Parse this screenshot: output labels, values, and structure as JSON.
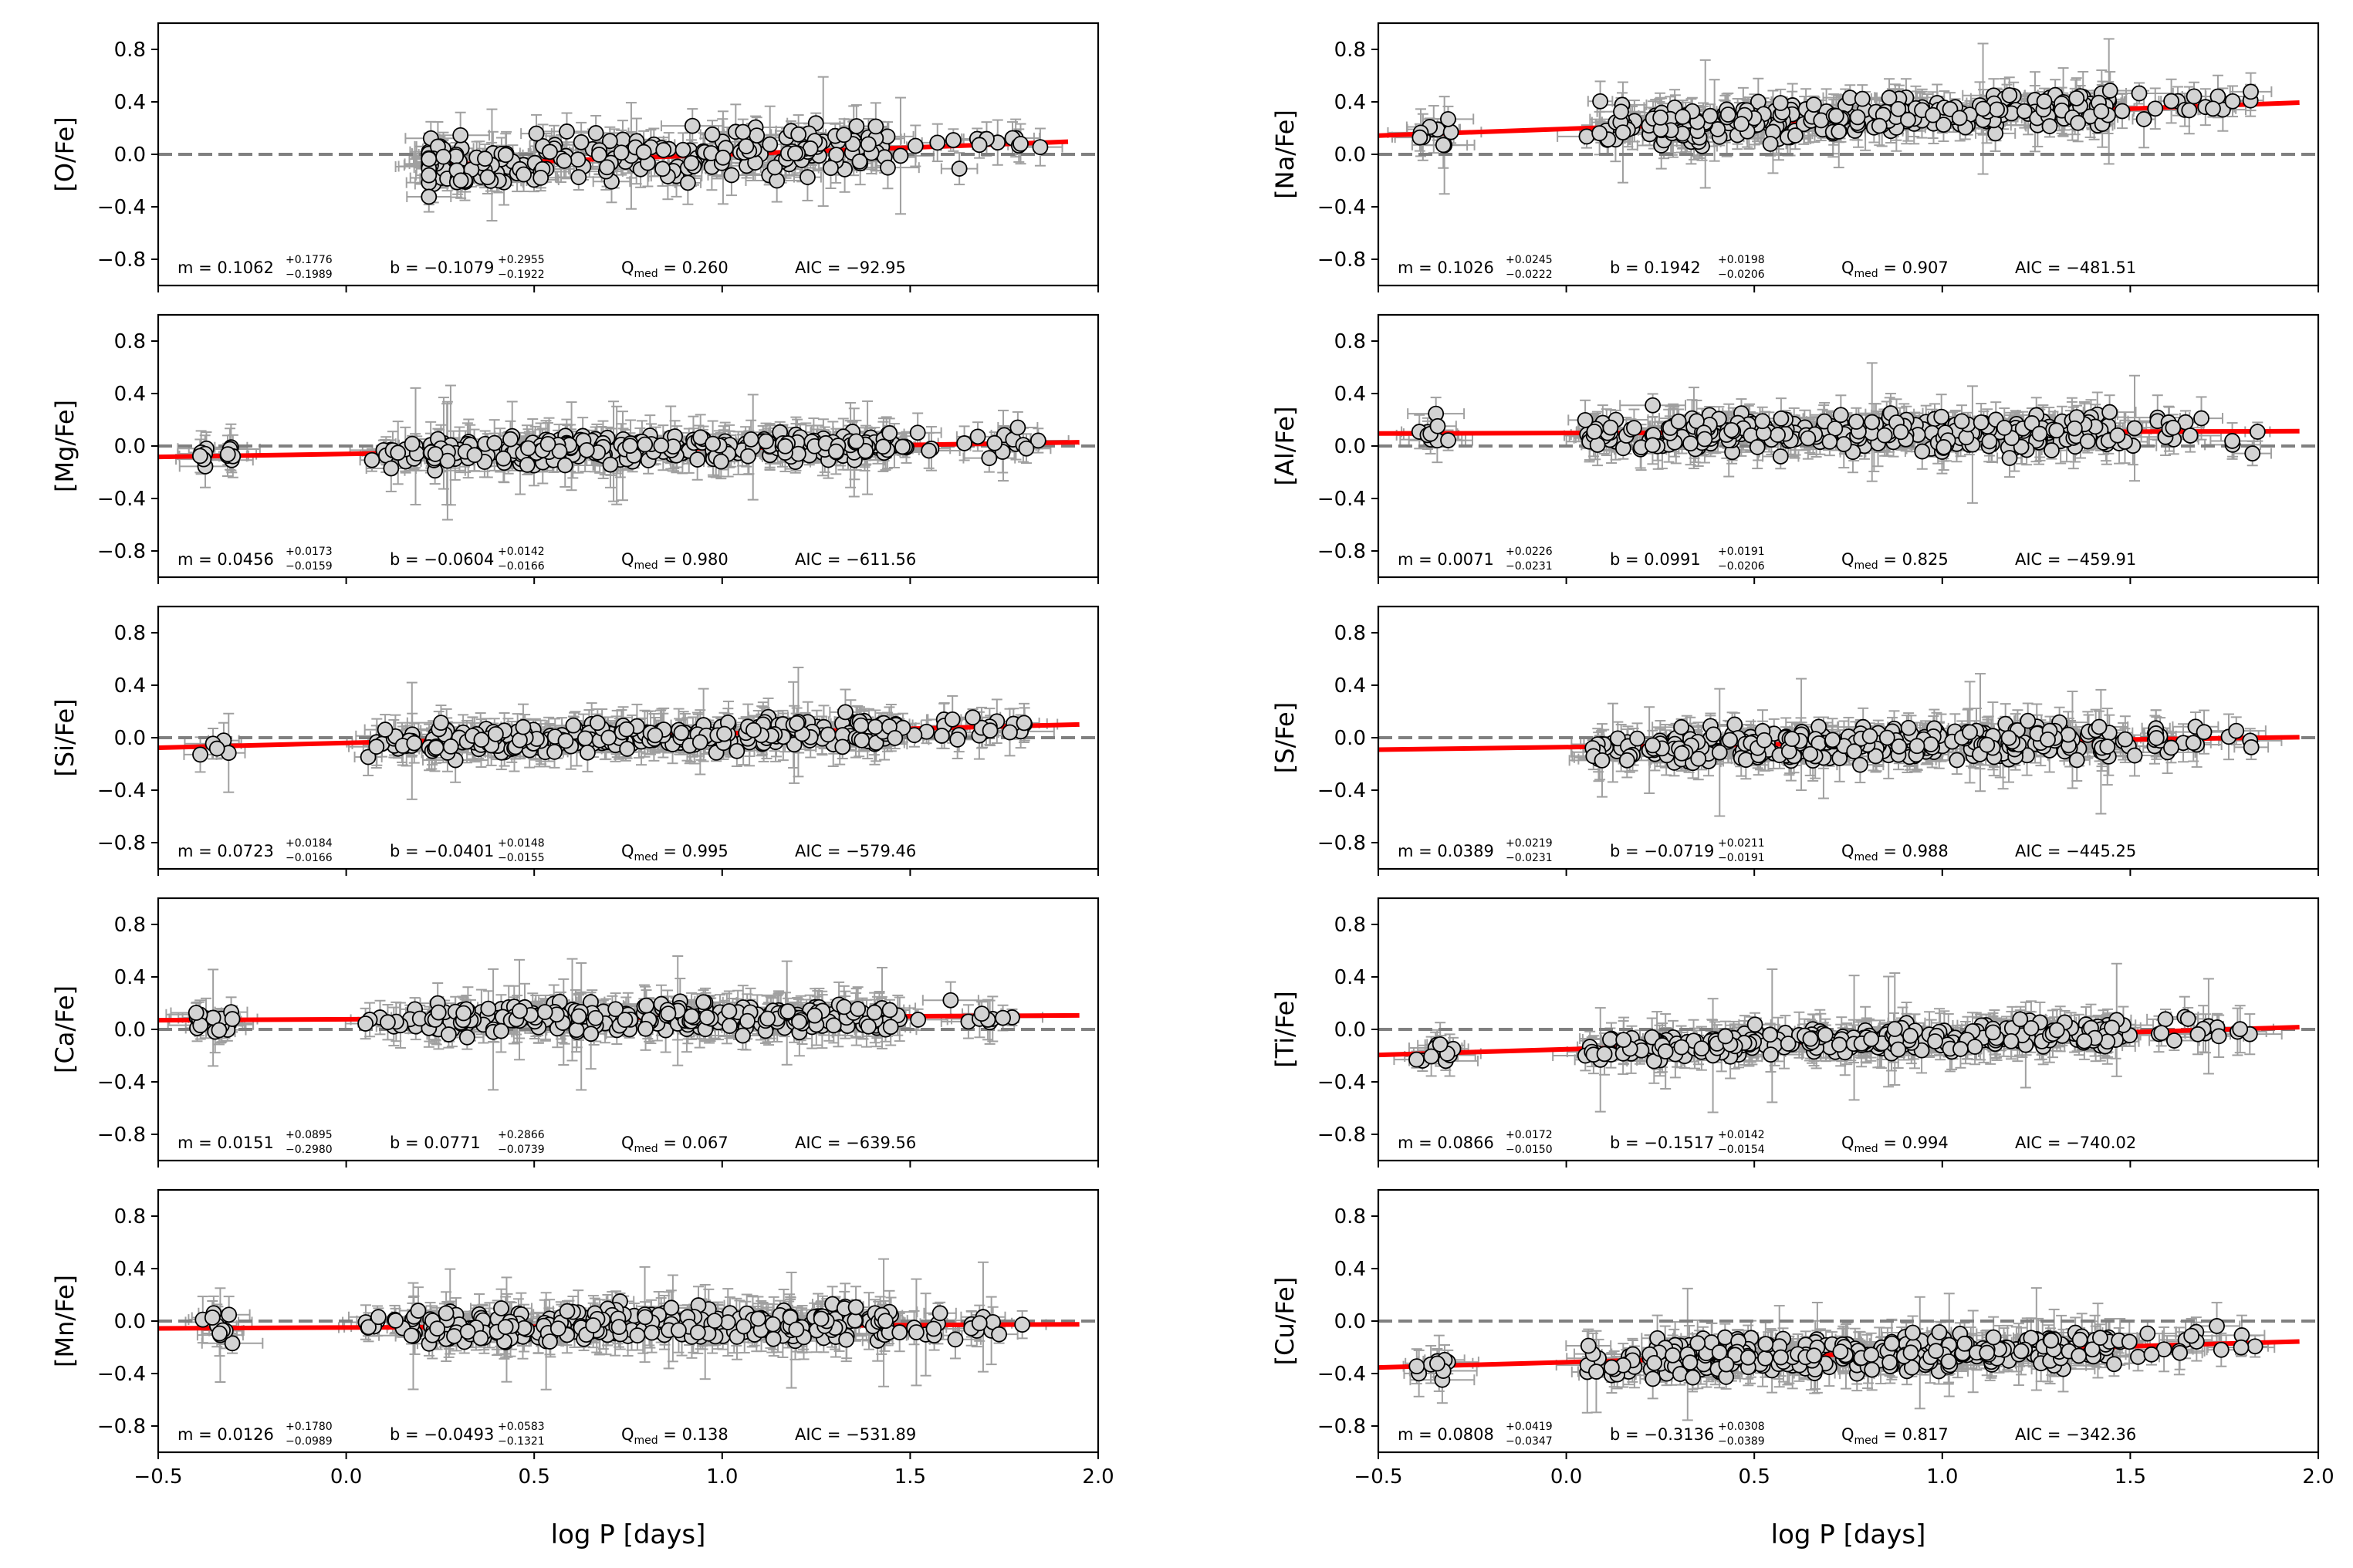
{
  "figure": {
    "xlabel_left": "log P [days]",
    "xlabel_right": "log P [days]"
  },
  "colors": {
    "fit": "#ff0000",
    "reference": "#808080",
    "marker_fill": "#d3d3d3",
    "marker_edge": "#000000",
    "errorbar": "#a0a0a0"
  },
  "chart_data": [
    {
      "type": "scatter",
      "ylabel": "[O/Fe]",
      "xlim": [
        -0.5,
        2.0
      ],
      "ylim": [
        -1.0,
        1.0
      ],
      "xticks": [
        "−0.5",
        "0.0",
        "0.5",
        "1.0",
        "1.5",
        "2.0"
      ],
      "yticks": [
        "0.8",
        "0.4",
        "0.0",
        "−0.4",
        "−0.8"
      ],
      "fit": {
        "slope": 0.1062,
        "intercept": -0.1079,
        "x_range": [
          0.22,
          1.92
        ]
      },
      "x_extent": [
        0.22,
        1.85
      ],
      "y_center": 0.0,
      "y_spread": 0.16,
      "annotation": {
        "m": "0.1062",
        "m_up": "+0.1776",
        "m_dn": "−0.1989",
        "b": "−0.1079",
        "b_up": "+0.2955",
        "b_dn": "−0.1922",
        "q": "0.260",
        "aic": "−92.95"
      }
    },
    {
      "type": "scatter",
      "ylabel": "[Na/Fe]",
      "xlim": [
        -0.5,
        2.0
      ],
      "ylim": [
        -1.0,
        1.0
      ],
      "xticks": [
        "−0.5",
        "0.0",
        "0.5",
        "1.0",
        "1.5",
        "2.0"
      ],
      "yticks": [
        "0.8",
        "0.4",
        "0.0",
        "−0.4",
        "−0.8"
      ],
      "fit": {
        "slope": 0.1026,
        "intercept": 0.1942,
        "x_range": [
          -0.5,
          1.95
        ]
      },
      "x_extent": [
        -0.4,
        1.85
      ],
      "y_center": 0.3,
      "y_spread": 0.12,
      "annotation": {
        "m": "0.1026",
        "m_up": "+0.0245",
        "m_dn": "−0.0222",
        "b": "0.1942",
        "b_up": "+0.0198",
        "b_dn": "−0.0206",
        "q": "0.907",
        "aic": "−481.51"
      }
    },
    {
      "type": "scatter",
      "ylabel": "[Mg/Fe]",
      "xlim": [
        -0.5,
        2.0
      ],
      "ylim": [
        -1.0,
        1.0
      ],
      "xticks": [
        "−0.5",
        "0.0",
        "0.5",
        "1.0",
        "1.5",
        "2.0"
      ],
      "yticks": [
        "0.8",
        "0.4",
        "0.0",
        "−0.4",
        "−0.8"
      ],
      "fit": {
        "slope": 0.0456,
        "intercept": -0.0604,
        "x_range": [
          -0.5,
          1.95
        ]
      },
      "x_extent": [
        -0.4,
        1.85
      ],
      "y_center": -0.02,
      "y_spread": 0.09,
      "annotation": {
        "m": "0.0456",
        "m_up": "+0.0173",
        "m_dn": "−0.0159",
        "b": "−0.0604",
        "b_up": "+0.0142",
        "b_dn": "−0.0166",
        "q": "0.980",
        "aic": "−611.56"
      }
    },
    {
      "type": "scatter",
      "ylabel": "[Al/Fe]",
      "xlim": [
        -0.5,
        2.0
      ],
      "ylim": [
        -1.0,
        1.0
      ],
      "xticks": [
        "−0.5",
        "0.0",
        "0.5",
        "1.0",
        "1.5",
        "2.0"
      ],
      "yticks": [
        "0.8",
        "0.4",
        "0.0",
        "−0.4",
        "−0.8"
      ],
      "fit": {
        "slope": 0.0071,
        "intercept": 0.0991,
        "x_range": [
          -0.5,
          1.95
        ]
      },
      "x_extent": [
        -0.4,
        1.85
      ],
      "y_center": 0.1,
      "y_spread": 0.12,
      "annotation": {
        "m": "0.0071",
        "m_up": "+0.0226",
        "m_dn": "−0.0231",
        "b": "0.0991",
        "b_up": "+0.0191",
        "b_dn": "−0.0206",
        "q": "0.825",
        "aic": "−459.91"
      }
    },
    {
      "type": "scatter",
      "ylabel": "[Si/Fe]",
      "xlim": [
        -0.5,
        2.0
      ],
      "ylim": [
        -1.0,
        1.0
      ],
      "xticks": [
        "−0.5",
        "0.0",
        "0.5",
        "1.0",
        "1.5",
        "2.0"
      ],
      "yticks": [
        "0.8",
        "0.4",
        "0.0",
        "−0.4",
        "−0.8"
      ],
      "fit": {
        "slope": 0.0723,
        "intercept": -0.0401,
        "x_range": [
          -0.5,
          1.95
        ]
      },
      "x_extent": [
        -0.4,
        1.85
      ],
      "y_center": 0.0,
      "y_spread": 0.09,
      "annotation": {
        "m": "0.0723",
        "m_up": "+0.0184",
        "m_dn": "−0.0166",
        "b": "−0.0401",
        "b_up": "+0.0148",
        "b_dn": "−0.0155",
        "q": "0.995",
        "aic": "−579.46"
      }
    },
    {
      "type": "scatter",
      "ylabel": "[S/Fe]",
      "xlim": [
        -0.5,
        2.0
      ],
      "ylim": [
        -1.0,
        1.0
      ],
      "xticks": [
        "−0.5",
        "0.0",
        "0.5",
        "1.0",
        "1.5",
        "2.0"
      ],
      "yticks": [
        "0.8",
        "0.4",
        "0.0",
        "−0.4",
        "−0.8"
      ],
      "fit": {
        "slope": 0.0389,
        "intercept": -0.0719,
        "x_range": [
          -0.5,
          1.95
        ]
      },
      "x_extent": [
        0.07,
        1.85
      ],
      "y_center": -0.05,
      "y_spread": 0.11,
      "annotation": {
        "m": "0.0389",
        "m_up": "+0.0219",
        "m_dn": "−0.0231",
        "b": "−0.0719",
        "b_up": "+0.0211",
        "b_dn": "−0.0191",
        "q": "0.988",
        "aic": "−445.25"
      }
    },
    {
      "type": "scatter",
      "ylabel": "[Ca/Fe]",
      "xlim": [
        -0.5,
        2.0
      ],
      "ylim": [
        -1.0,
        1.0
      ],
      "xticks": [
        "−0.5",
        "0.0",
        "0.5",
        "1.0",
        "1.5",
        "2.0"
      ],
      "yticks": [
        "0.8",
        "0.4",
        "0.0",
        "−0.4",
        "−0.8"
      ],
      "fit": {
        "slope": 0.0151,
        "intercept": 0.0771,
        "x_range": [
          -0.5,
          1.95
        ]
      },
      "x_extent": [
        -0.4,
        1.85
      ],
      "y_center": 0.08,
      "y_spread": 0.09,
      "annotation": {
        "m": "0.0151",
        "m_up": "+0.0895",
        "m_dn": "−0.2980",
        "b": "0.0771",
        "b_up": "+0.2866",
        "b_dn": "−0.0739",
        "q": "0.067",
        "aic": "−639.56"
      }
    },
    {
      "type": "scatter",
      "ylabel": "[Ti/Fe]",
      "xlim": [
        -0.5,
        2.0
      ],
      "ylim": [
        -1.0,
        1.0
      ],
      "xticks": [
        "−0.5",
        "0.0",
        "0.5",
        "1.0",
        "1.5",
        "2.0"
      ],
      "yticks": [
        "0.8",
        "0.4",
        "0.0",
        "−0.4",
        "−0.8"
      ],
      "fit": {
        "slope": 0.0866,
        "intercept": -0.1517,
        "x_range": [
          -0.5,
          1.95
        ]
      },
      "x_extent": [
        -0.4,
        1.85
      ],
      "y_center": -0.08,
      "y_spread": 0.08,
      "annotation": {
        "m": "0.0866",
        "m_up": "+0.0172",
        "m_dn": "−0.0150",
        "b": "−0.1517",
        "b_up": "+0.0142",
        "b_dn": "−0.0154",
        "q": "0.994",
        "aic": "−740.02"
      }
    },
    {
      "type": "scatter",
      "ylabel": "[Mn/Fe]",
      "xlim": [
        -0.5,
        2.0
      ],
      "ylim": [
        -1.0,
        1.0
      ],
      "xticks": [
        "−0.5",
        "0.0",
        "0.5",
        "1.0",
        "1.5",
        "2.0"
      ],
      "yticks": [
        "0.8",
        "0.4",
        "0.0",
        "−0.4",
        "−0.8"
      ],
      "fit": {
        "slope": 0.0126,
        "intercept": -0.0493,
        "x_range": [
          -0.5,
          1.95
        ]
      },
      "x_extent": [
        -0.4,
        1.85
      ],
      "y_center": -0.03,
      "y_spread": 0.11,
      "annotation": {
        "m": "0.0126",
        "m_up": "+0.1780",
        "m_dn": "−0.0989",
        "b": "−0.0493",
        "b_up": "+0.0583",
        "b_dn": "−0.1321",
        "q": "0.138",
        "aic": "−531.89"
      }
    },
    {
      "type": "scatter",
      "ylabel": "[Cu/Fe]",
      "xlim": [
        -0.5,
        2.0
      ],
      "ylim": [
        -1.0,
        1.0
      ],
      "xticks": [
        "−0.5",
        "0.0",
        "0.5",
        "1.0",
        "1.5",
        "2.0"
      ],
      "yticks": [
        "0.8",
        "0.4",
        "0.0",
        "−0.4",
        "−0.8"
      ],
      "fit": {
        "slope": 0.0808,
        "intercept": -0.3136,
        "x_range": [
          -0.5,
          1.95
        ]
      },
      "x_extent": [
        -0.4,
        1.85
      ],
      "y_center": -0.25,
      "y_spread": 0.12,
      "annotation": {
        "m": "0.0808",
        "m_up": "+0.0419",
        "m_dn": "−0.0347",
        "b": "−0.3136",
        "b_up": "+0.0308",
        "b_dn": "−0.0389",
        "q": "0.817",
        "aic": "−342.36"
      }
    }
  ]
}
